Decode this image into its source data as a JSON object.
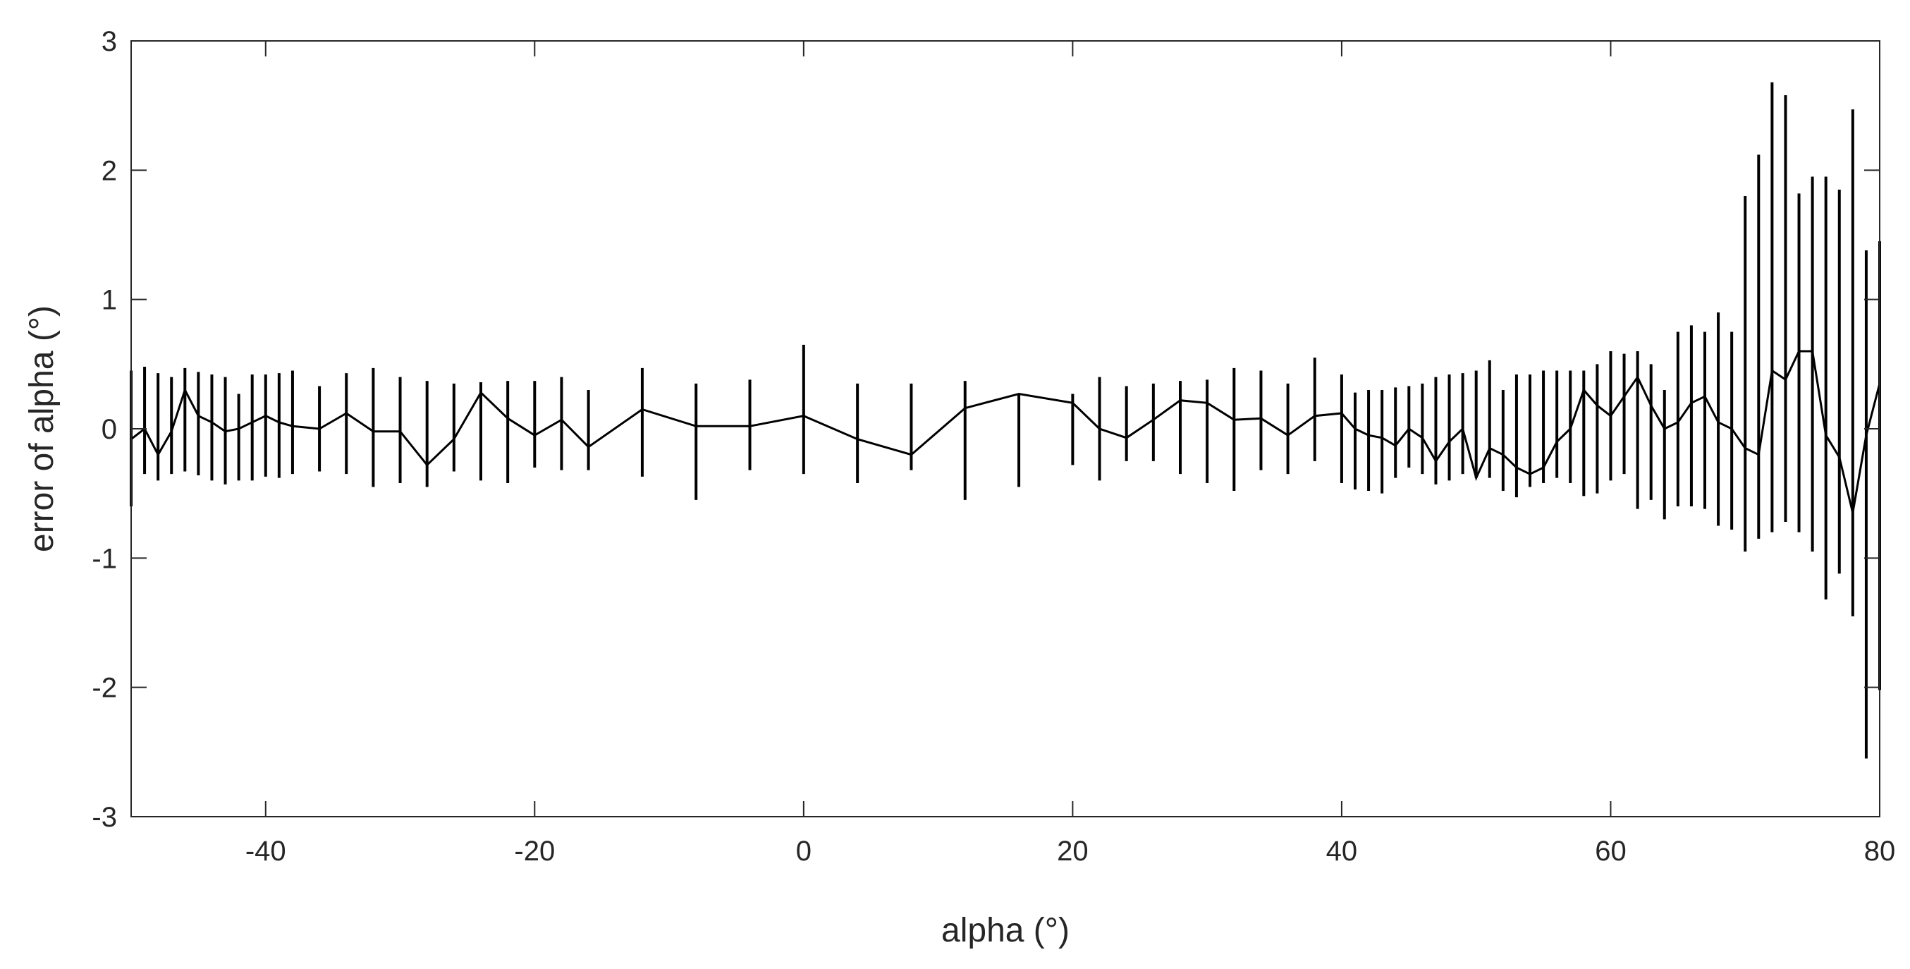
{
  "chart_data": {
    "type": "line",
    "title": "",
    "xlabel": "alpha (°)",
    "ylabel": "error of alpha (°)",
    "xlim": [
      -50,
      80
    ],
    "ylim": [
      -3,
      3
    ],
    "x_ticks": [
      -40,
      -20,
      0,
      20,
      40,
      60,
      80
    ],
    "y_ticks": [
      -3,
      -2,
      -1,
      0,
      1,
      2,
      3
    ],
    "x_tick_labels": [
      "-40",
      "-20",
      "0",
      "20",
      "40",
      "60",
      "80"
    ],
    "y_tick_labels": [
      "-3",
      "-2",
      "-1",
      "0",
      "1",
      "2",
      "3"
    ],
    "grid": false,
    "legend": "none",
    "line_color": "#000000",
    "error_bars": true,
    "points": [
      {
        "x": -50,
        "y": -0.08,
        "lo": -0.6,
        "hi": 0.45
      },
      {
        "x": -49,
        "y": 0.0,
        "lo": -0.35,
        "hi": 0.48
      },
      {
        "x": -48,
        "y": -0.2,
        "lo": -0.4,
        "hi": 0.43
      },
      {
        "x": -47,
        "y": -0.02,
        "lo": -0.35,
        "hi": 0.4
      },
      {
        "x": -46,
        "y": 0.3,
        "lo": -0.33,
        "hi": 0.47
      },
      {
        "x": -45,
        "y": 0.1,
        "lo": -0.36,
        "hi": 0.44
      },
      {
        "x": -44,
        "y": 0.05,
        "lo": -0.4,
        "hi": 0.42
      },
      {
        "x": -43,
        "y": -0.02,
        "lo": -0.43,
        "hi": 0.4
      },
      {
        "x": -42,
        "y": 0.0,
        "lo": -0.4,
        "hi": 0.27
      },
      {
        "x": -41,
        "y": 0.05,
        "lo": -0.4,
        "hi": 0.42
      },
      {
        "x": -40,
        "y": 0.1,
        "lo": -0.37,
        "hi": 0.42
      },
      {
        "x": -39,
        "y": 0.05,
        "lo": -0.38,
        "hi": 0.43
      },
      {
        "x": -38,
        "y": 0.02,
        "lo": -0.35,
        "hi": 0.45
      },
      {
        "x": -36,
        "y": 0.0,
        "lo": -0.33,
        "hi": 0.33
      },
      {
        "x": -34,
        "y": 0.12,
        "lo": -0.35,
        "hi": 0.43
      },
      {
        "x": -32,
        "y": -0.02,
        "lo": -0.45,
        "hi": 0.47
      },
      {
        "x": -30,
        "y": -0.02,
        "lo": -0.42,
        "hi": 0.4
      },
      {
        "x": -28,
        "y": -0.28,
        "lo": -0.45,
        "hi": 0.37
      },
      {
        "x": -26,
        "y": -0.08,
        "lo": -0.33,
        "hi": 0.35
      },
      {
        "x": -24,
        "y": 0.28,
        "lo": -0.4,
        "hi": 0.36
      },
      {
        "x": -22,
        "y": 0.08,
        "lo": -0.42,
        "hi": 0.37
      },
      {
        "x": -20,
        "y": -0.05,
        "lo": -0.3,
        "hi": 0.37
      },
      {
        "x": -18,
        "y": 0.07,
        "lo": -0.32,
        "hi": 0.4
      },
      {
        "x": -16,
        "y": -0.14,
        "lo": -0.32,
        "hi": 0.3
      },
      {
        "x": -12,
        "y": 0.15,
        "lo": -0.37,
        "hi": 0.47
      },
      {
        "x": -8,
        "y": 0.02,
        "lo": -0.55,
        "hi": 0.35
      },
      {
        "x": -4,
        "y": 0.02,
        "lo": -0.32,
        "hi": 0.38
      },
      {
        "x": 0,
        "y": 0.1,
        "lo": -0.35,
        "hi": 0.65
      },
      {
        "x": 4,
        "y": -0.08,
        "lo": -0.42,
        "hi": 0.35
      },
      {
        "x": 8,
        "y": -0.2,
        "lo": -0.32,
        "hi": 0.35
      },
      {
        "x": 12,
        "y": 0.16,
        "lo": -0.55,
        "hi": 0.37
      },
      {
        "x": 16,
        "y": 0.27,
        "lo": -0.45,
        "hi": 0.27
      },
      {
        "x": 20,
        "y": 0.2,
        "lo": -0.28,
        "hi": 0.27
      },
      {
        "x": 22,
        "y": 0.0,
        "lo": -0.4,
        "hi": 0.4
      },
      {
        "x": 24,
        "y": -0.07,
        "lo": -0.25,
        "hi": 0.33
      },
      {
        "x": 26,
        "y": 0.07,
        "lo": -0.25,
        "hi": 0.35
      },
      {
        "x": 28,
        "y": 0.22,
        "lo": -0.35,
        "hi": 0.37
      },
      {
        "x": 30,
        "y": 0.2,
        "lo": -0.42,
        "hi": 0.38
      },
      {
        "x": 32,
        "y": 0.07,
        "lo": -0.48,
        "hi": 0.47
      },
      {
        "x": 34,
        "y": 0.08,
        "lo": -0.32,
        "hi": 0.45
      },
      {
        "x": 36,
        "y": -0.05,
        "lo": -0.35,
        "hi": 0.35
      },
      {
        "x": 38,
        "y": 0.1,
        "lo": -0.25,
        "hi": 0.55
      },
      {
        "x": 40,
        "y": 0.12,
        "lo": -0.42,
        "hi": 0.42
      },
      {
        "x": 41,
        "y": 0.0,
        "lo": -0.47,
        "hi": 0.28
      },
      {
        "x": 42,
        "y": -0.05,
        "lo": -0.48,
        "hi": 0.3
      },
      {
        "x": 43,
        "y": -0.07,
        "lo": -0.5,
        "hi": 0.3
      },
      {
        "x": 44,
        "y": -0.13,
        "lo": -0.38,
        "hi": 0.32
      },
      {
        "x": 45,
        "y": 0.0,
        "lo": -0.3,
        "hi": 0.33
      },
      {
        "x": 46,
        "y": -0.07,
        "lo": -0.35,
        "hi": 0.35
      },
      {
        "x": 47,
        "y": -0.25,
        "lo": -0.43,
        "hi": 0.4
      },
      {
        "x": 48,
        "y": -0.1,
        "lo": -0.4,
        "hi": 0.42
      },
      {
        "x": 49,
        "y": 0.0,
        "lo": -0.35,
        "hi": 0.43
      },
      {
        "x": 50,
        "y": -0.38,
        "lo": -0.38,
        "hi": 0.45
      },
      {
        "x": 51,
        "y": -0.15,
        "lo": -0.38,
        "hi": 0.53
      },
      {
        "x": 52,
        "y": -0.2,
        "lo": -0.48,
        "hi": 0.3
      },
      {
        "x": 53,
        "y": -0.3,
        "lo": -0.53,
        "hi": 0.42
      },
      {
        "x": 54,
        "y": -0.35,
        "lo": -0.45,
        "hi": 0.42
      },
      {
        "x": 55,
        "y": -0.3,
        "lo": -0.42,
        "hi": 0.45
      },
      {
        "x": 56,
        "y": -0.1,
        "lo": -0.38,
        "hi": 0.45
      },
      {
        "x": 57,
        "y": 0.0,
        "lo": -0.42,
        "hi": 0.45
      },
      {
        "x": 58,
        "y": 0.3,
        "lo": -0.52,
        "hi": 0.45
      },
      {
        "x": 59,
        "y": 0.18,
        "lo": -0.5,
        "hi": 0.5
      },
      {
        "x": 60,
        "y": 0.1,
        "lo": -0.4,
        "hi": 0.6
      },
      {
        "x": 61,
        "y": 0.25,
        "lo": -0.35,
        "hi": 0.58
      },
      {
        "x": 62,
        "y": 0.4,
        "lo": -0.62,
        "hi": 0.6
      },
      {
        "x": 63,
        "y": 0.18,
        "lo": -0.55,
        "hi": 0.5
      },
      {
        "x": 64,
        "y": 0.0,
        "lo": -0.7,
        "hi": 0.3
      },
      {
        "x": 65,
        "y": 0.05,
        "lo": -0.6,
        "hi": 0.75
      },
      {
        "x": 66,
        "y": 0.2,
        "lo": -0.6,
        "hi": 0.8
      },
      {
        "x": 67,
        "y": 0.25,
        "lo": -0.62,
        "hi": 0.75
      },
      {
        "x": 68,
        "y": 0.05,
        "lo": -0.75,
        "hi": 0.9
      },
      {
        "x": 69,
        "y": 0.0,
        "lo": -0.78,
        "hi": 0.75
      },
      {
        "x": 70,
        "y": -0.15,
        "lo": -0.95,
        "hi": 1.8
      },
      {
        "x": 71,
        "y": -0.2,
        "lo": -0.85,
        "hi": 2.12
      },
      {
        "x": 72,
        "y": 0.45,
        "lo": -0.8,
        "hi": 2.68
      },
      {
        "x": 73,
        "y": 0.38,
        "lo": -0.72,
        "hi": 2.58
      },
      {
        "x": 74,
        "y": 0.6,
        "lo": -0.8,
        "hi": 1.82
      },
      {
        "x": 75,
        "y": 0.6,
        "lo": -0.95,
        "hi": 1.95
      },
      {
        "x": 76,
        "y": -0.05,
        "lo": -1.32,
        "hi": 1.95
      },
      {
        "x": 77,
        "y": -0.22,
        "lo": -1.12,
        "hi": 1.85
      },
      {
        "x": 78,
        "y": -0.65,
        "lo": -1.45,
        "hi": 2.47
      },
      {
        "x": 79,
        "y": -0.05,
        "lo": -2.55,
        "hi": 1.38
      },
      {
        "x": 80,
        "y": 0.35,
        "lo": -2.02,
        "hi": 1.45
      }
    ]
  }
}
